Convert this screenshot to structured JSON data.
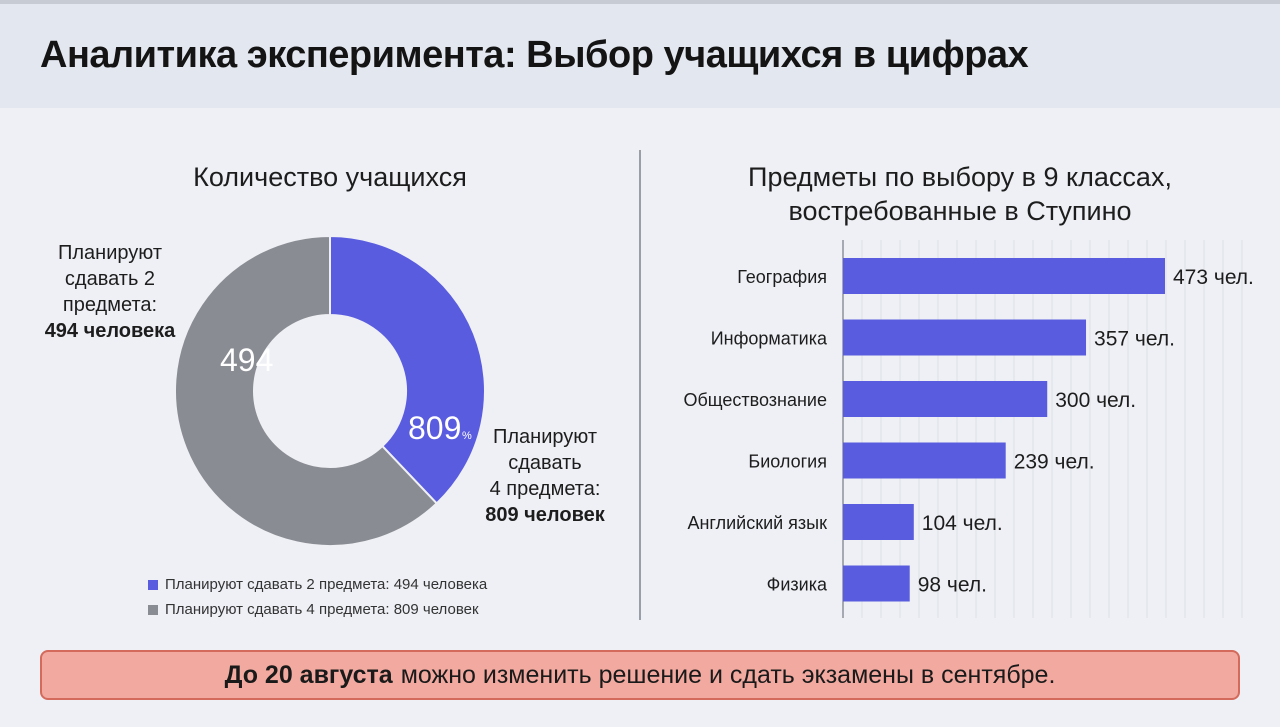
{
  "header": {
    "title": "Аналитика эксперимента: Выбор учащихся в цифрах"
  },
  "left_panel": {
    "title": "Количество учащихся",
    "label_two": {
      "line1": "Планируют",
      "line2": "сдавать 2",
      "line3": "предмета:",
      "value": "494 человека"
    },
    "label_four": {
      "line1": "Планируют",
      "line2": "сдавать",
      "line3": "4 предмета:",
      "value": "809 человек"
    },
    "slice_two_text": "494",
    "slice_four_text": "809",
    "slice_four_suffix": "%",
    "legend": [
      {
        "label": "Планируют сдавать 2 предмета: 494 человека",
        "color": "#5a5ce0"
      },
      {
        "label": "Планируют сдавать 4 предмета: 809 человек",
        "color": "#8a8c93"
      }
    ]
  },
  "right_panel": {
    "title_line1": "Предметы по выбору в 9 классах,",
    "title_line2": "востребованные в Ступино"
  },
  "banner": {
    "bold": "До 20 августа",
    "text": "можно изменить решение и сдать экзамены в сентябре."
  },
  "chart_data": [
    {
      "type": "pie",
      "donut": true,
      "categories": [
        "Планируют сдавать 2 предмета",
        "Планируют сдавать 4 предмета"
      ],
      "values": [
        494,
        809
      ],
      "colors": [
        "#5a5ce0",
        "#8a8c93"
      ],
      "title": "Количество учащихся"
    },
    {
      "type": "bar",
      "orientation": "horizontal",
      "title": "Предметы по выбору в 9 классах, востребованные в Ступино",
      "categories": [
        "География",
        "Информатика",
        "Обществознание",
        "Биология",
        "Английский язык",
        "Физика"
      ],
      "values": [
        473,
        357,
        300,
        239,
        104,
        98
      ],
      "data_labels": [
        "473 чел.",
        "357 чел.",
        "300 чел.",
        "239 чел.",
        "104 чел.",
        "98 чел."
      ],
      "color": "#5a5ce0",
      "grid": true
    }
  ]
}
